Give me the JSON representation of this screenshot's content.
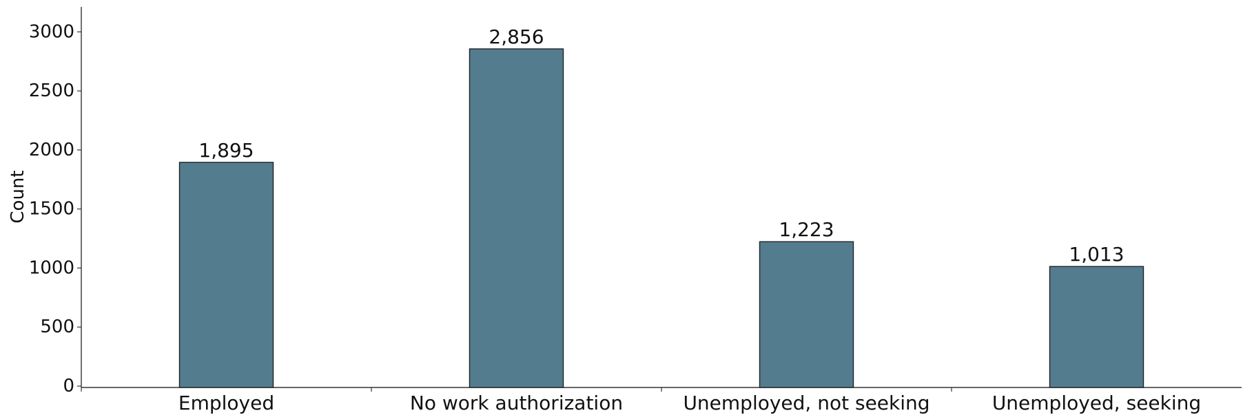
{
  "chart_data": {
    "type": "bar",
    "categories": [
      "Employed",
      "No work authorization",
      "Unemployed, not seeking",
      "Unemployed, seeking"
    ],
    "values": [
      1895,
      2856,
      1223,
      1013
    ],
    "data_labels": [
      "1,895",
      "2,856",
      "1,223",
      "1,013"
    ],
    "title": "",
    "xlabel": "",
    "ylabel": "Count",
    "ylim": [
      0,
      3200
    ],
    "yticks": [
      0,
      500,
      1000,
      1500,
      2000,
      2500,
      3000
    ],
    "bar_color": "#537d8f",
    "bar_edge_color": "#222222",
    "grid": false,
    "legend": "none"
  }
}
